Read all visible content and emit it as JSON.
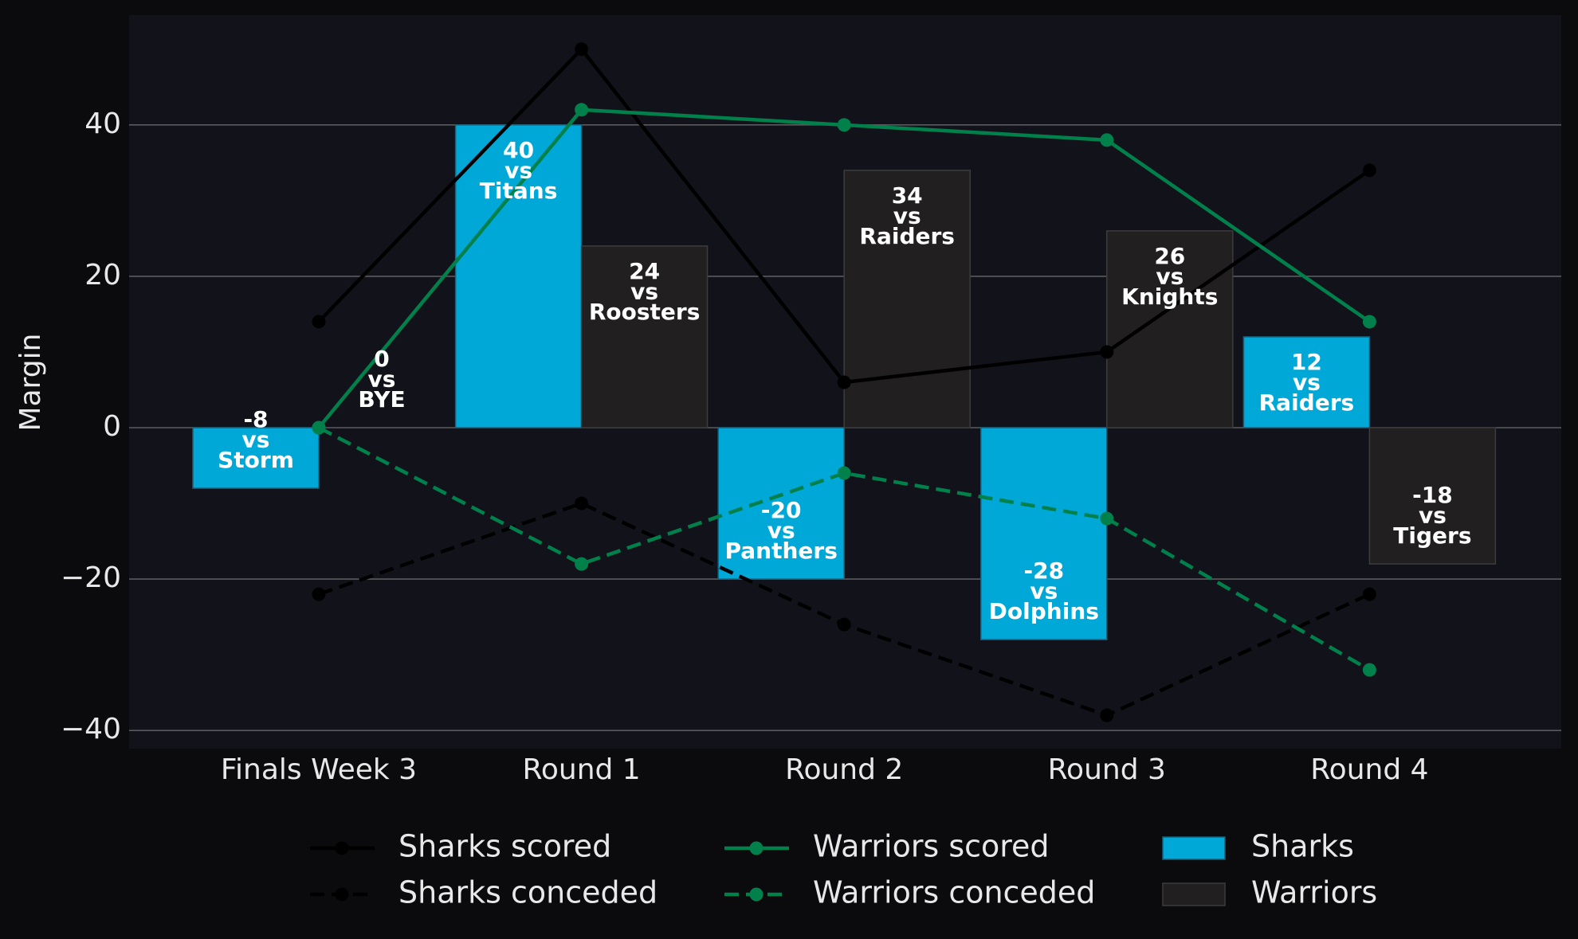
{
  "chart_data": {
    "type": "bar",
    "ylabel": "Margin",
    "categories": [
      "Finals Week 3",
      "Round 1",
      "Round 2",
      "Round 3",
      "Round 4"
    ],
    "ylim": [
      -42.4,
      54.5
    ],
    "yticks": [
      {
        "value": -40,
        "label": "−40"
      },
      {
        "value": -20,
        "label": "−20"
      },
      0,
      20,
      40
    ],
    "grid": true,
    "legend": "lower center",
    "versus": "vs",
    "series": [
      {
        "name": "Sharks scored",
        "type": "line",
        "dashed": false,
        "color": "#000000",
        "values": [
          14,
          50,
          6,
          10,
          34
        ]
      },
      {
        "name": "Sharks conceded",
        "type": "line",
        "dashed": true,
        "color": "#000000",
        "values": [
          -22,
          -10,
          -26,
          -38,
          -22
        ]
      },
      {
        "name": "Warriors scored",
        "type": "line",
        "dashed": false,
        "color": "#00804a",
        "values": [
          0,
          42,
          40,
          38,
          14
        ]
      },
      {
        "name": "Warriors conceded",
        "type": "line",
        "dashed": true,
        "color": "#00804a",
        "values": [
          0,
          -18,
          -6,
          -12,
          -32
        ]
      },
      {
        "name": "Sharks",
        "type": "bar",
        "color": "#00a8d8",
        "edgecolor": "#1d5f78",
        "values": [
          -8,
          40,
          -20,
          -28,
          12
        ],
        "opponents": [
          "Storm",
          "Titans",
          "Panthers",
          "Dolphins",
          "Raiders"
        ]
      },
      {
        "name": "Warriors",
        "type": "bar",
        "color": "#211f1f",
        "edgecolor": "#3c3c3c",
        "values": [
          0,
          24,
          34,
          26,
          -18
        ],
        "opponents": [
          "BYE",
          "Roosters",
          "Raiders",
          "Knights",
          "Tigers"
        ]
      }
    ]
  }
}
